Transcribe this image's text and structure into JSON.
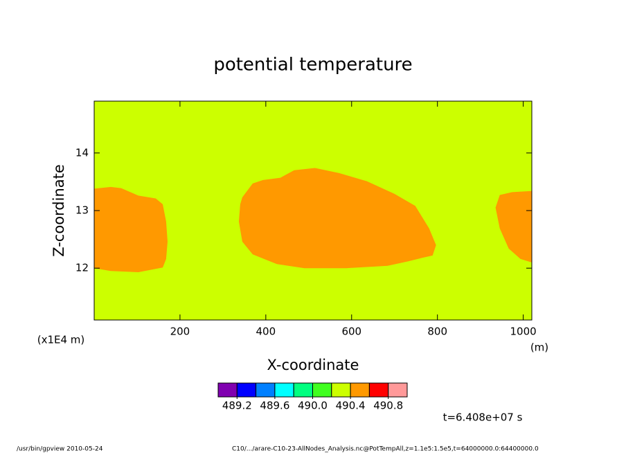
{
  "chart_data": {
    "type": "contour",
    "title": "potential temperature",
    "x_label": "X-coordinate",
    "y_label": "Z-coordinate",
    "y_unit": "(x1E4 m)",
    "x_unit": "(m)",
    "time_label": "t=6.408e+07 s",
    "footer_left": "/usr/bin/gpview   2010-05-24",
    "footer_right": "C10/.../arare-C10-23-AllNodes_Analysis.nc@PotTempAll,z=1.1e5:1.5e5,t=64000000.0:64400000.0",
    "xlim": [
      0,
      1020
    ],
    "ylim": [
      11.1,
      14.9
    ],
    "xticks": [
      200,
      400,
      600,
      800,
      1000
    ],
    "yticks": [
      12,
      13,
      14
    ],
    "background": "#ccff00",
    "regions": [
      {
        "color": "#ff9900",
        "x": [
          0,
          38.7,
          62.9,
          103,
          143.5,
          159.7,
          167.7,
          171,
          167.7,
          159.7,
          103,
          38.7,
          0
        ],
        "z": [
          13.38,
          13.41,
          13.39,
          13.26,
          13.21,
          13.11,
          12.81,
          12.46,
          12.16,
          12.01,
          11.93,
          11.95,
          12.0
        ]
      },
      {
        "color": "#ff9900",
        "x": [
          345.2,
          369.4,
          393.5,
          433.9,
          466.1,
          514.5,
          571,
          635.5,
          700,
          748.4,
          780.6,
          796.8,
          788.7,
          764.5,
          732.3,
          683.9,
          587.1,
          490.3,
          425.8,
          369.4,
          345.2,
          337.1,
          340.3
        ],
        "z": [
          13.23,
          13.47,
          13.53,
          13.57,
          13.7,
          13.74,
          13.65,
          13.51,
          13.29,
          13.08,
          12.69,
          12.4,
          12.22,
          12.18,
          12.12,
          12.04,
          12.0,
          12.0,
          12.07,
          12.24,
          12.46,
          12.81,
          13.11
        ]
      },
      {
        "color": "#ff9900",
        "x": [
          1019.4,
          974.2,
          945.2,
          935.5,
          945.2,
          966.1,
          993.5,
          1019.4
        ],
        "z": [
          13.34,
          13.32,
          13.27,
          13.05,
          12.69,
          12.34,
          12.16,
          12.1
        ]
      }
    ],
    "colorbar": {
      "clim": [
        489.0,
        491.0
      ],
      "colors": [
        "#8000b0",
        "#0000ff",
        "#0080ff",
        "#00ffff",
        "#00ff80",
        "#40ff20",
        "#ccff00",
        "#ff9900",
        "#ff0000",
        "#ff9999"
      ],
      "ticks": [
        489.2,
        489.6,
        {
          "value": 490,
          "label": "490.0"
        },
        490.4,
        490.8
      ]
    }
  }
}
